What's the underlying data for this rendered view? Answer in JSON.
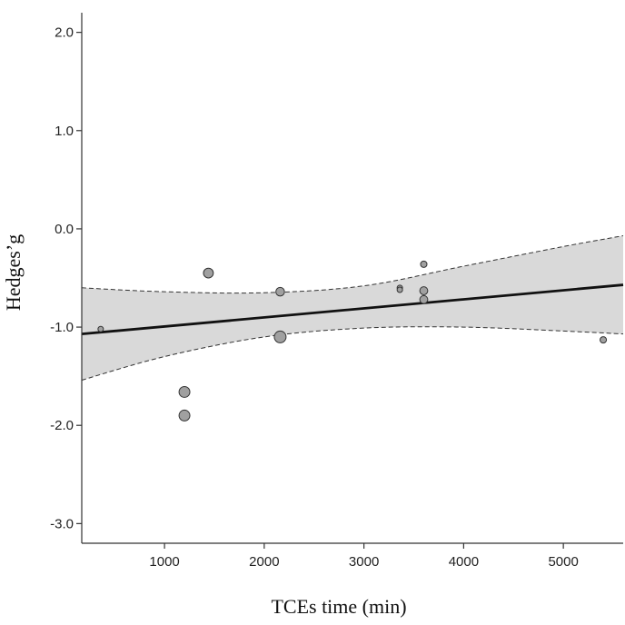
{
  "chart_data": {
    "type": "scatter",
    "title": "",
    "xlabel": "TCEs time (min)",
    "ylabel": "Hedges’g",
    "xlim": [
      170,
      5600
    ],
    "ylim": [
      -3.2,
      2.2
    ],
    "x_ticks": [
      1000,
      2000,
      3000,
      4000,
      5000
    ],
    "x_tick_labels": [
      "1000",
      "2000",
      "3000",
      "4000",
      "5000"
    ],
    "y_ticks": [
      2.0,
      1.0,
      0.0,
      -1.0,
      -2.0,
      -3.0
    ],
    "y_tick_labels": [
      "2.0",
      "1.0",
      "0.0",
      "-1.0",
      "-2.0",
      "-3.0"
    ],
    "grid": false,
    "points": [
      {
        "x": 360,
        "y": -1.02,
        "weight": 1
      },
      {
        "x": 1200,
        "y": -1.66,
        "weight": 5
      },
      {
        "x": 1200,
        "y": -1.9,
        "weight": 5
      },
      {
        "x": 1440,
        "y": -0.45,
        "weight": 4
      },
      {
        "x": 2160,
        "y": -0.64,
        "weight": 3
      },
      {
        "x": 2160,
        "y": -1.1,
        "weight": 6
      },
      {
        "x": 3360,
        "y": -0.6,
        "weight": 1
      },
      {
        "x": 3360,
        "y": -0.62,
        "weight": 1
      },
      {
        "x": 3600,
        "y": -0.36,
        "weight": 1.5
      },
      {
        "x": 3600,
        "y": -0.63,
        "weight": 2.5
      },
      {
        "x": 3600,
        "y": -0.72,
        "weight": 2.5
      },
      {
        "x": 5400,
        "y": -1.13,
        "weight": 1.5
      }
    ],
    "regression": {
      "x": [
        170,
        5600
      ],
      "y": [
        -1.07,
        -0.57
      ]
    },
    "confidence_band": {
      "x": [
        170,
        1000,
        2000,
        3000,
        4000,
        5000,
        5600
      ],
      "upper": [
        -0.6,
        -0.64,
        -0.65,
        -0.58,
        -0.38,
        -0.18,
        -0.07
      ],
      "lower": [
        -1.54,
        -1.3,
        -1.1,
        -1.01,
        -1.0,
        -1.04,
        -1.07
      ]
    },
    "colors": {
      "marker_fill": "#a0a0a0",
      "marker_edge": "#333333",
      "band_fill": "#d9d9d9",
      "line": "#111111",
      "axis": "#333333"
    }
  }
}
